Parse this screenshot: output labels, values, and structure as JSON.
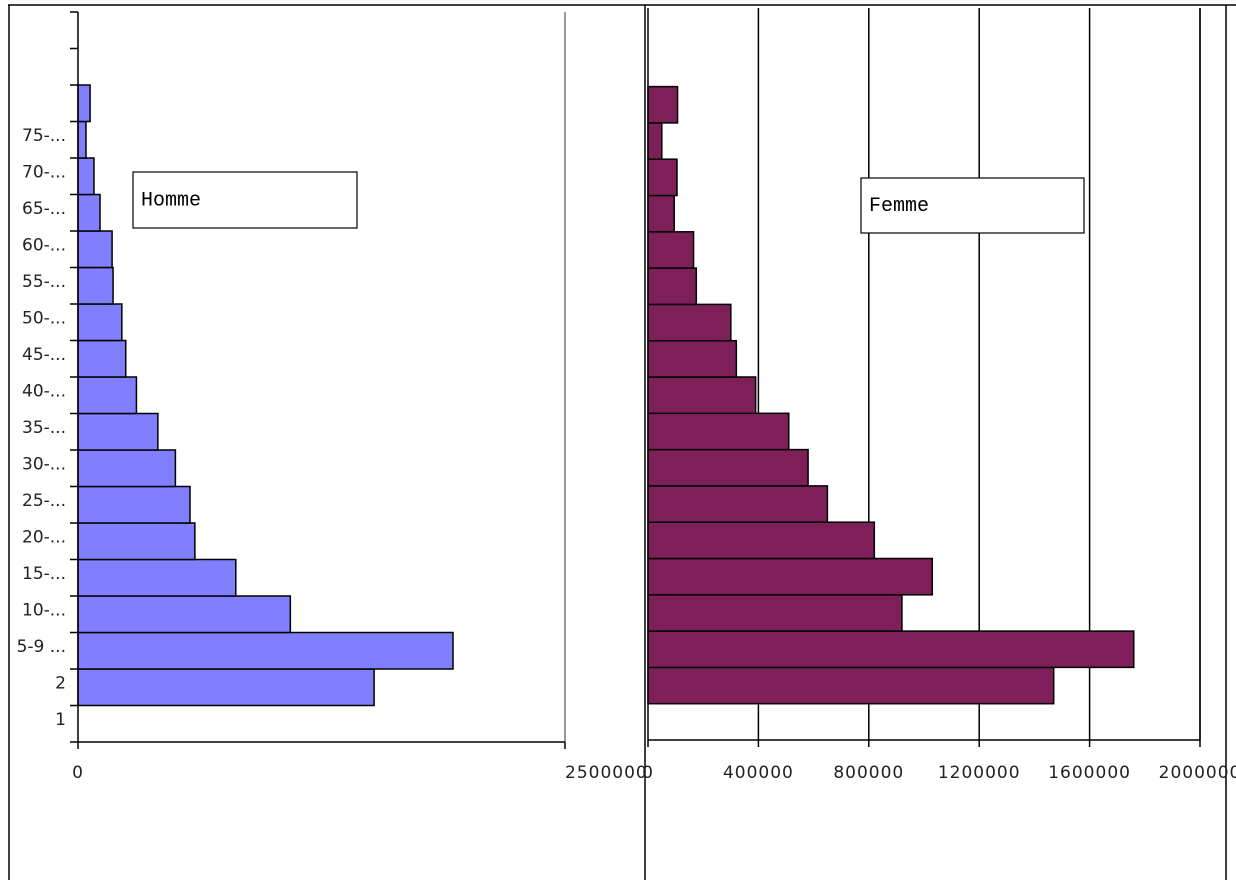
{
  "chart_data": [
    {
      "type": "bar",
      "orientation": "horizontal",
      "categories": [
        "1",
        "2",
        "5-9 ...",
        "10-...",
        "15-...",
        "20-...",
        "25-...",
        "30-...",
        "35-...",
        "40-...",
        "45-...",
        "50-...",
        "55-...",
        "60-...",
        "65-...",
        "70-...",
        "75-...",
        null
      ],
      "series": [
        {
          "name": "Homme",
          "color": "#8080ff",
          "values": [
            null,
            1520000,
            1925000,
            1090000,
            810000,
            600000,
            575000,
            500000,
            410000,
            300000,
            245000,
            225000,
            180000,
            175000,
            113000,
            82000,
            41000,
            62000
          ]
        }
      ],
      "xlim": [
        0,
        2500000
      ],
      "xticks": [
        0,
        2500000
      ],
      "grid": false
    },
    {
      "type": "bar",
      "orientation": "horizontal",
      "series": [
        {
          "name": "Femme",
          "color": "#7f1f5a",
          "values": [
            null,
            1470000,
            1760000,
            920000,
            1030000,
            820000,
            650000,
            580000,
            510000,
            390000,
            320000,
            300000,
            175000,
            165000,
            95000,
            105000,
            50000,
            107000
          ]
        }
      ],
      "xlim": [
        0,
        2000000
      ],
      "xticks": [
        0,
        400000,
        800000,
        1200000,
        1600000,
        2000000
      ],
      "grid": true
    }
  ]
}
